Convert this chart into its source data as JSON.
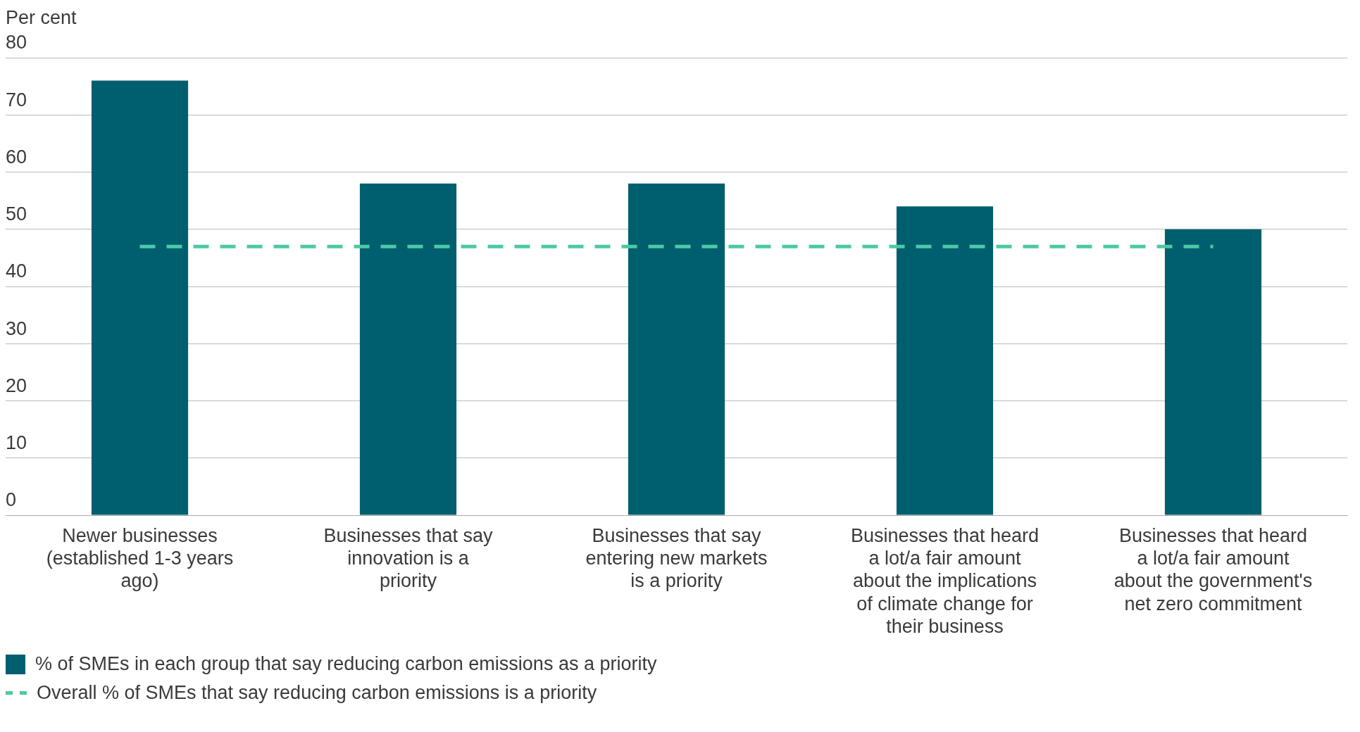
{
  "chart_data": {
    "type": "bar",
    "ylabel": "Per cent",
    "categories": [
      "Newer businesses (established 1-3 years ago)",
      "Businesses that say innovation is a priority",
      "Businesses that say entering new markets is a priority",
      "Businesses that heard a lot/a fair amount about the implications of climate change for their business",
      "Businesses that heard a lot/a fair amount about the government's net zero commitment"
    ],
    "series": [
      {
        "name": "% of SMEs in each group that say reducing carbon emissions as a priority",
        "color": "#005f6e",
        "values": [
          76,
          58,
          58,
          54,
          50
        ]
      },
      {
        "name": "Overall % of SMEs that say reducing carbon emissions is a priority",
        "type": "line",
        "color": "#4cc9a4",
        "line_style": "dashed",
        "values": [
          47,
          47,
          47,
          47,
          47
        ]
      }
    ],
    "ylim": [
      0,
      80
    ],
    "yticks": [
      0,
      10,
      20,
      30,
      40,
      50,
      60,
      70,
      80
    ],
    "grid": "y",
    "legend": "bottom"
  }
}
